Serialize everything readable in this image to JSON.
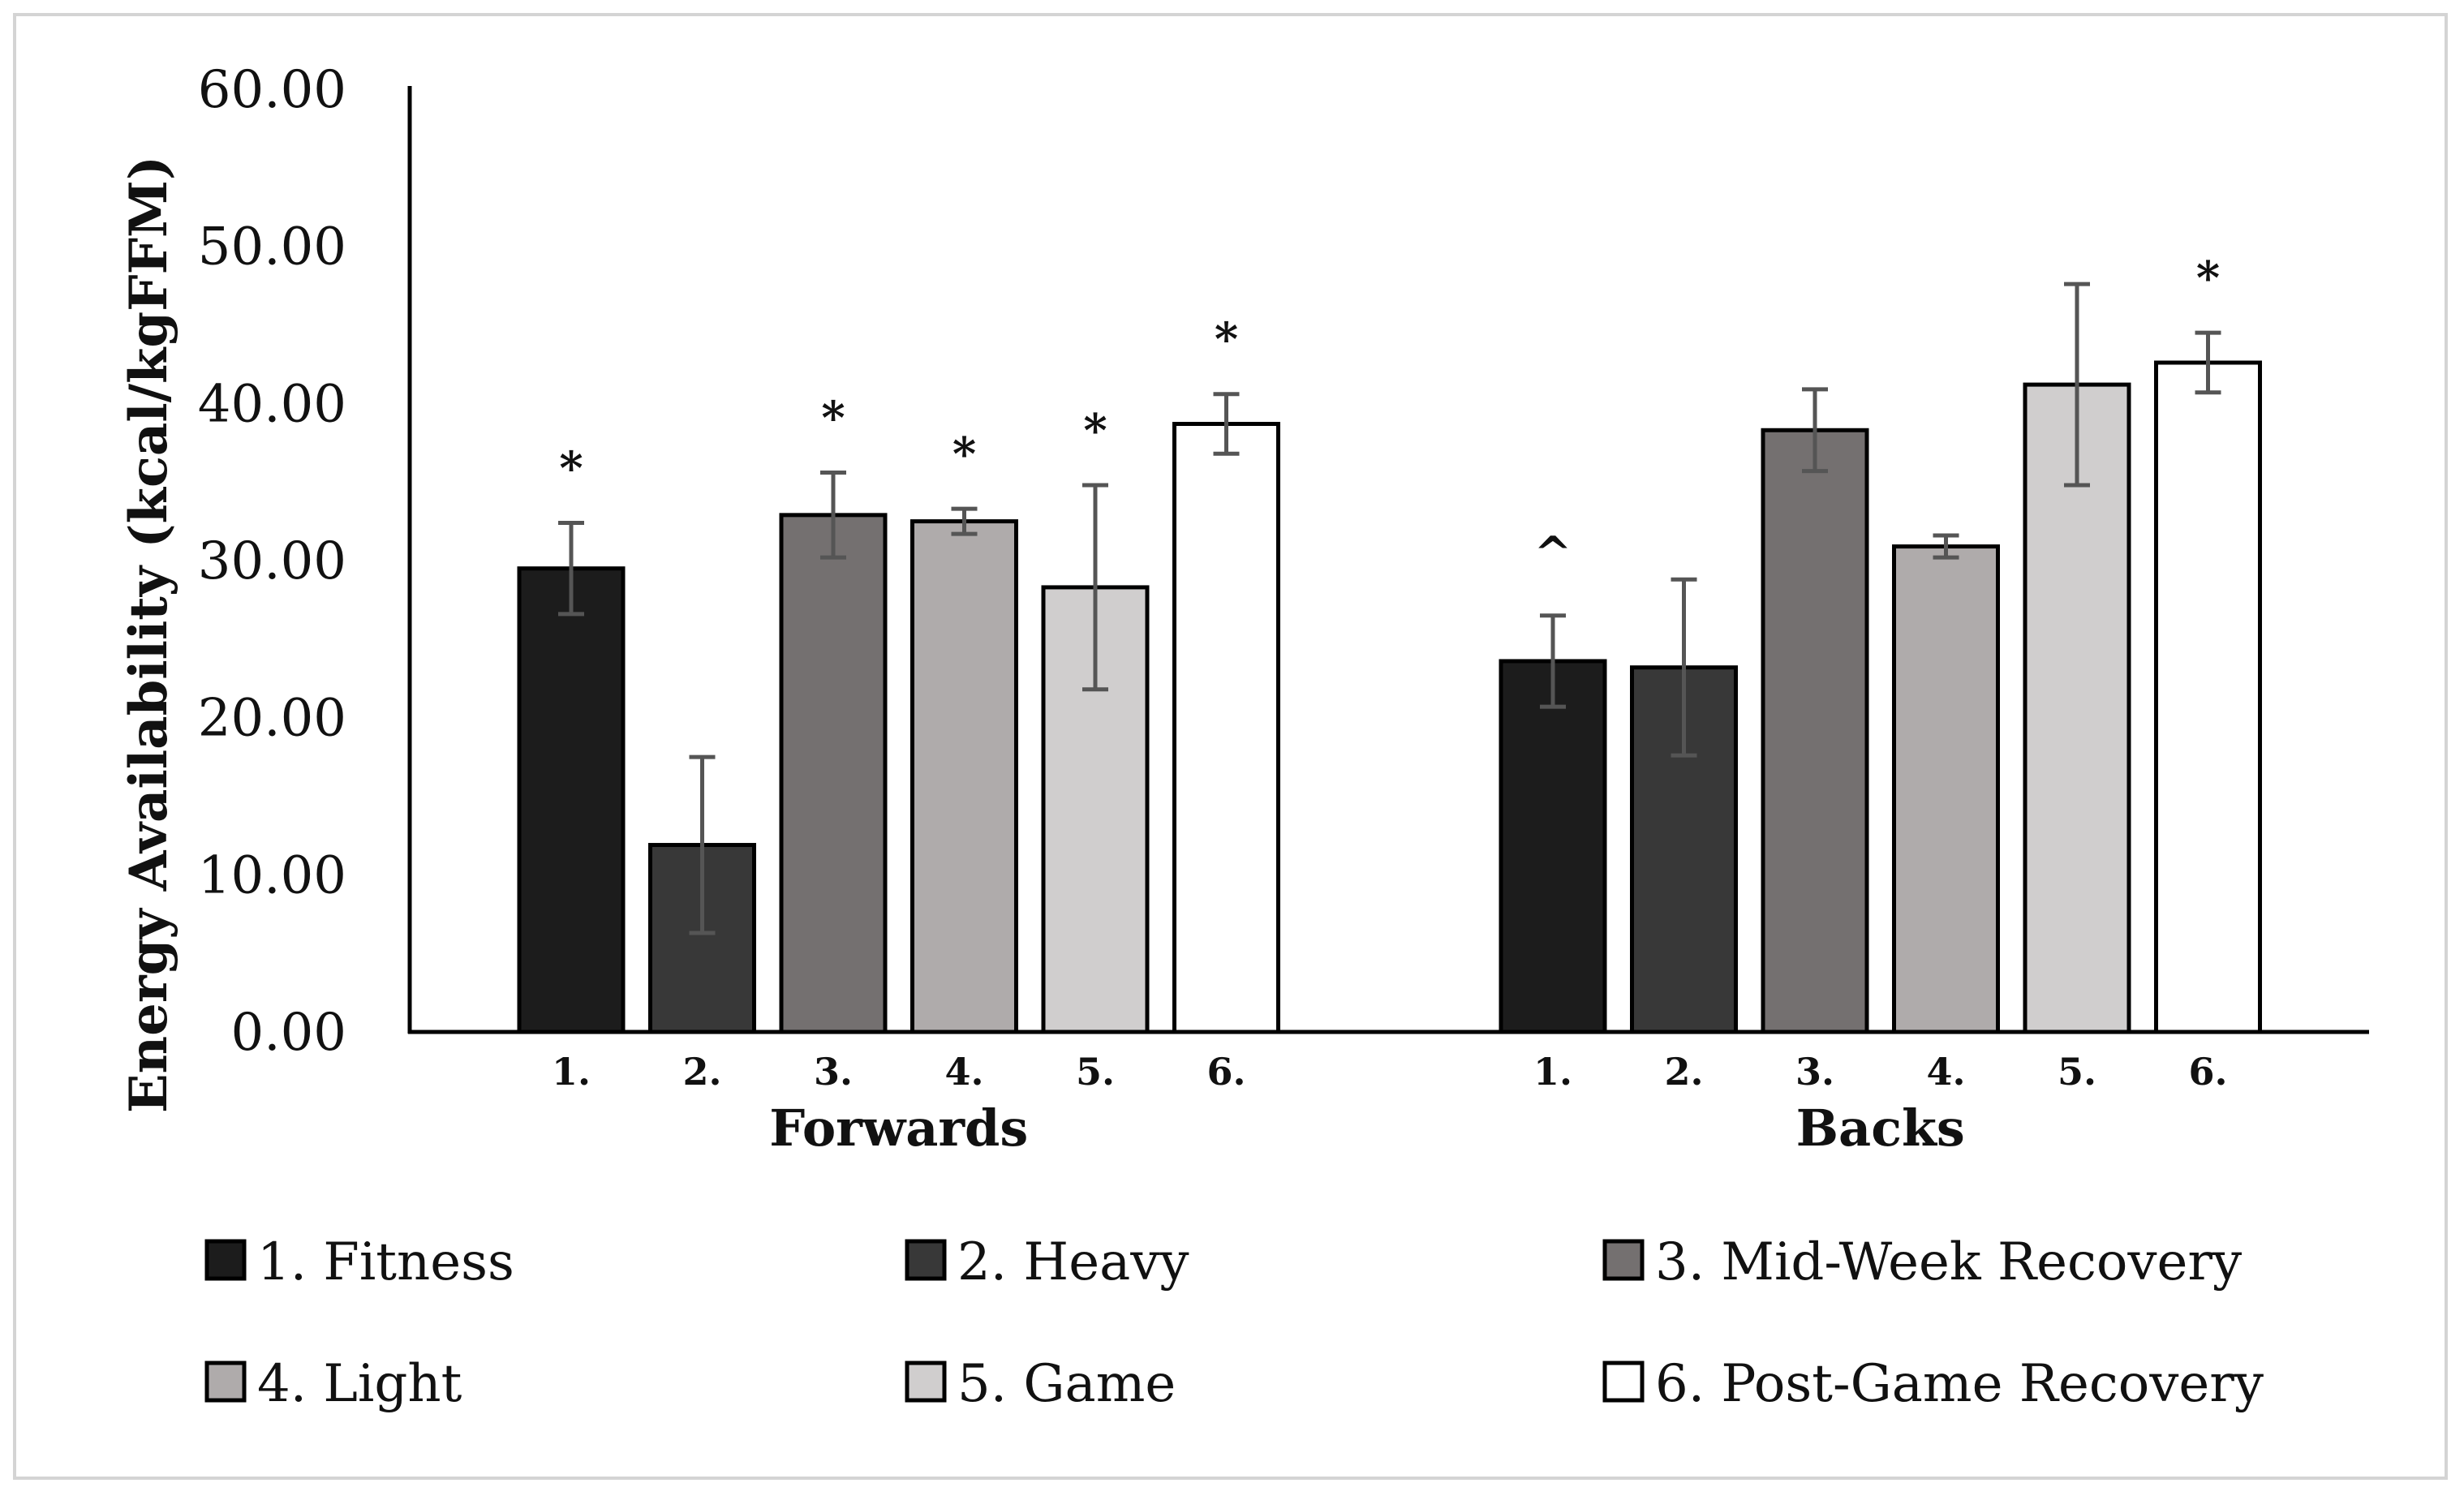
{
  "chart_data": {
    "type": "bar",
    "title": "",
    "xlabel": "",
    "ylabel": "Energy Availability (kcal/kgFFM)",
    "ylim": [
      0,
      60
    ],
    "ytick_step": 10,
    "ytick_labels": [
      "0.00",
      "10.00",
      "20.00",
      "30.00",
      "40.00",
      "50.00",
      "60.00"
    ],
    "grid": false,
    "legend_position": "bottom",
    "categories": [
      "Forwards",
      "Backs"
    ],
    "bar_labels": [
      "1.",
      "2.",
      "3.",
      "4.",
      "5.",
      "6."
    ],
    "series": [
      {
        "name": "1. Fitness",
        "color": "#1c1c1c",
        "values": [
          29.5,
          23.6
        ],
        "errors": [
          2.9,
          2.9
        ],
        "annotations": [
          "*",
          "^"
        ]
      },
      {
        "name": "2. Heavy",
        "color": "#383838",
        "values": [
          11.9,
          23.2
        ],
        "errors": [
          5.6,
          5.6
        ],
        "annotations": [
          "",
          ""
        ]
      },
      {
        "name": "3. Mid-Week Recovery",
        "color": "#747070",
        "values": [
          32.9,
          38.3
        ],
        "errors": [
          2.7,
          2.6
        ],
        "annotations": [
          "*",
          ""
        ]
      },
      {
        "name": "4. Light",
        "color": "#afabab",
        "values": [
          32.5,
          30.9
        ],
        "errors": [
          0.8,
          0.7
        ],
        "annotations": [
          "*",
          ""
        ]
      },
      {
        "name": "5. Game",
        "color": "#d0cece",
        "values": [
          28.3,
          41.2
        ],
        "errors": [
          6.5,
          6.4
        ],
        "annotations": [
          "*",
          ""
        ]
      },
      {
        "name": "6. Post-Game Recovery",
        "color": "#ffffff",
        "values": [
          38.7,
          42.6
        ],
        "errors": [
          1.9,
          1.9
        ],
        "annotations": [
          "*",
          "*"
        ]
      }
    ]
  }
}
